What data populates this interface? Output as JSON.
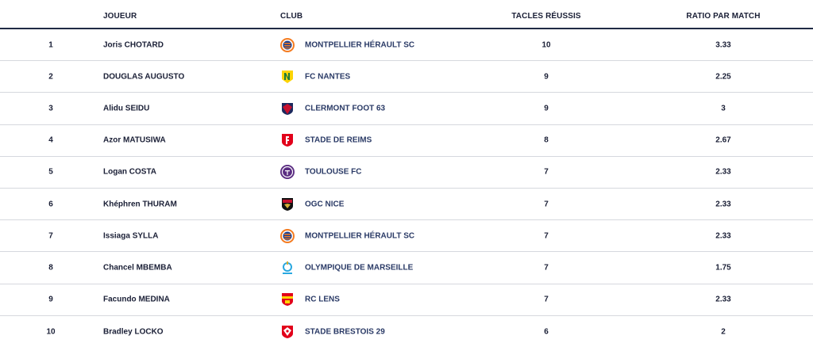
{
  "headers": {
    "player": "JOUEUR",
    "club": "CLUB",
    "tackles": "TACLES RÉUSSIS",
    "ratio": "RATIO PAR MATCH"
  },
  "rows": [
    {
      "rank": "1",
      "player": "Joris CHOTARD",
      "club": "MONTPELLIER HÉRAULT SC",
      "logo": "montpellier-logo",
      "tackles": "10",
      "ratio": "3.33"
    },
    {
      "rank": "2",
      "player": "DOUGLAS AUGUSTO",
      "club": "FC NANTES",
      "logo": "nantes-logo",
      "tackles": "9",
      "ratio": "2.25"
    },
    {
      "rank": "3",
      "player": "Alidu SEIDU",
      "club": "CLERMONT FOOT 63",
      "logo": "clermont-logo",
      "tackles": "9",
      "ratio": "3"
    },
    {
      "rank": "4",
      "player": "Azor MATUSIWA",
      "club": "STADE DE REIMS",
      "logo": "reims-logo",
      "tackles": "8",
      "ratio": "2.67"
    },
    {
      "rank": "5",
      "player": "Logan COSTA",
      "club": "TOULOUSE FC",
      "logo": "toulouse-logo",
      "tackles": "7",
      "ratio": "2.33"
    },
    {
      "rank": "6",
      "player": "Khéphren THURAM",
      "club": "OGC NICE",
      "logo": "nice-logo",
      "tackles": "7",
      "ratio": "2.33"
    },
    {
      "rank": "7",
      "player": "Issiaga SYLLA",
      "club": "MONTPELLIER HÉRAULT SC",
      "logo": "montpellier-logo",
      "tackles": "7",
      "ratio": "2.33"
    },
    {
      "rank": "8",
      "player": "Chancel MBEMBA",
      "club": "OLYMPIQUE DE MARSEILLE",
      "logo": "marseille-logo",
      "tackles": "7",
      "ratio": "1.75"
    },
    {
      "rank": "9",
      "player": "Facundo MEDINA",
      "club": "RC LENS",
      "logo": "lens-logo",
      "tackles": "7",
      "ratio": "2.33"
    },
    {
      "rank": "10",
      "player": "Bradley LOCKO",
      "club": "STADE BRESTOIS 29",
      "logo": "brest-logo",
      "tackles": "6",
      "ratio": "2"
    }
  ]
}
